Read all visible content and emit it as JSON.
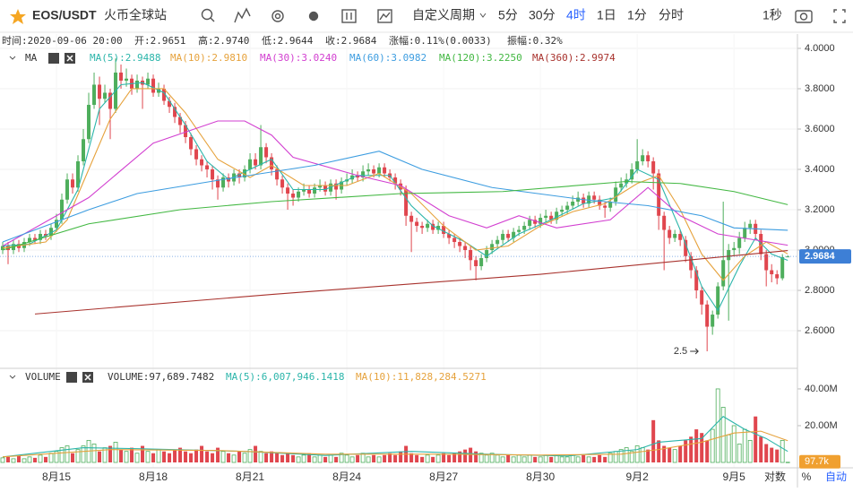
{
  "toolbar": {
    "symbol": "EOS/USDT",
    "exchange": "火币全球站",
    "period_menu": "自定义周期",
    "periods": [
      "5分",
      "30分",
      "4时",
      "1日",
      "1分",
      "分时"
    ],
    "active_period": "4时",
    "speed": "1秒"
  },
  "footer": {
    "log": "对数",
    "percent": "%",
    "auto": "自动"
  },
  "chart_data": {
    "type": "candlestick",
    "info": [
      "时间:2020-09-06 20:00",
      "开:2.9651",
      "高:2.9740",
      "低:2.9644",
      "收:2.9684",
      "涨幅:0.11%(0.0033)",
      "振幅:0.32%"
    ],
    "indicator": "MA",
    "up_color": "#4eae5c",
    "down_color": "#e0464e",
    "xlim": [
      -0.5,
      147.8
    ],
    "xticks": [
      {
        "value": 10,
        "label": "8月15"
      },
      {
        "value": 28,
        "label": "8月18"
      },
      {
        "value": 46,
        "label": "8月21"
      },
      {
        "value": 64,
        "label": "8月24"
      },
      {
        "value": 82,
        "label": "8月27"
      },
      {
        "value": 100,
        "label": "8月30"
      },
      {
        "value": 118,
        "label": "9月2"
      },
      {
        "value": 136,
        "label": "9月5"
      }
    ],
    "ylim": [
      2.418,
      4.071
    ],
    "yticks": [
      {
        "value": 2.6,
        "label": "2.6000"
      },
      {
        "value": 2.8,
        "label": "2.8000"
      },
      {
        "value": 3.0,
        "label": "3.0000"
      },
      {
        "value": 3.2,
        "label": "3.2000"
      },
      {
        "value": 3.4,
        "label": "3.4000"
      },
      {
        "value": 3.6,
        "label": "3.6000"
      },
      {
        "value": 3.8,
        "label": "3.8000"
      },
      {
        "value": 4.0,
        "label": "4.0000"
      }
    ],
    "grid": true,
    "low_label": "2.5",
    "open": [
      3.0,
      3.02,
      3.0,
      3.03,
      3.01,
      3.04,
      3.06,
      3.05,
      3.08,
      3.07,
      3.11,
      3.15,
      3.25,
      3.35,
      3.31,
      3.44,
      3.55,
      3.72,
      3.82,
      3.75,
      3.78,
      3.7,
      3.88,
      3.84,
      3.85,
      3.8,
      3.84,
      3.82,
      3.85,
      3.78,
      3.8,
      3.74,
      3.71,
      3.66,
      3.62,
      3.56,
      3.5,
      3.45,
      3.42,
      3.4,
      3.35,
      3.31,
      3.36,
      3.34,
      3.38,
      3.36,
      3.4,
      3.45,
      3.42,
      3.51,
      3.46,
      3.4,
      3.35,
      3.31,
      3.28,
      3.26,
      3.29,
      3.3,
      3.28,
      3.31,
      3.32,
      3.29,
      3.33,
      3.3,
      3.34,
      3.35,
      3.37,
      3.36,
      3.39,
      3.4,
      3.38,
      3.41,
      3.38,
      3.36,
      3.33,
      3.3,
      3.17,
      3.14,
      3.12,
      3.11,
      3.13,
      3.1,
      3.12,
      3.08,
      3.06,
      3.04,
      3.02,
      3.0,
      2.95,
      2.92,
      2.96,
      3.0,
      3.03,
      3.05,
      3.08,
      3.06,
      3.09,
      3.1,
      3.12,
      3.15,
      3.13,
      3.16,
      3.17,
      3.15,
      3.19,
      3.2,
      3.22,
      3.24,
      3.26,
      3.23,
      3.27,
      3.25,
      3.22,
      3.21,
      3.24,
      3.31,
      3.33,
      3.35,
      3.4,
      3.44,
      3.47,
      3.44,
      3.38,
      3.17,
      3.1,
      3.06,
      3.08,
      3.05,
      2.97,
      2.9,
      2.8,
      2.73,
      2.62,
      2.68,
      2.82,
      2.95,
      3.0,
      3.01,
      3.06,
      3.11,
      3.13,
      3.08,
      2.98,
      2.9,
      2.88,
      2.86,
      2.9651
    ],
    "high": [
      3.04,
      3.04,
      3.05,
      3.05,
      3.06,
      3.08,
      3.08,
      3.1,
      3.1,
      3.13,
      3.18,
      3.28,
      3.38,
      3.38,
      3.47,
      3.6,
      3.78,
      3.88,
      3.86,
      3.82,
      3.8,
      3.95,
      3.92,
      3.9,
      3.87,
      3.87,
      3.86,
      3.88,
      3.87,
      3.83,
      3.82,
      3.76,
      3.73,
      3.68,
      3.64,
      3.58,
      3.52,
      3.47,
      3.44,
      3.42,
      3.37,
      3.38,
      3.38,
      3.4,
      3.4,
      3.42,
      3.48,
      3.48,
      3.62,
      3.53,
      3.48,
      3.42,
      3.37,
      3.33,
      3.3,
      3.31,
      3.33,
      3.32,
      3.33,
      3.35,
      3.34,
      3.35,
      3.35,
      3.36,
      3.38,
      3.4,
      3.39,
      3.42,
      3.43,
      3.42,
      3.43,
      3.43,
      3.4,
      3.38,
      3.35,
      3.32,
      3.19,
      3.16,
      3.14,
      3.15,
      3.15,
      3.14,
      3.14,
      3.1,
      3.08,
      3.06,
      3.04,
      3.02,
      2.97,
      2.98,
      3.02,
      3.05,
      3.07,
      3.1,
      3.1,
      3.11,
      3.12,
      3.14,
      3.17,
      3.17,
      3.18,
      3.2,
      3.19,
      3.21,
      3.22,
      3.24,
      3.27,
      3.29,
      3.28,
      3.29,
      3.29,
      3.27,
      3.24,
      3.26,
      3.34,
      3.36,
      3.38,
      3.43,
      3.55,
      3.5,
      3.49,
      3.46,
      3.4,
      3.19,
      3.12,
      3.1,
      3.1,
      3.07,
      2.99,
      2.92,
      2.82,
      2.75,
      2.7,
      2.84,
      3.24,
      3.03,
      3.04,
      3.09,
      3.14,
      3.15,
      3.15,
      3.1,
      3.0,
      2.93,
      2.9,
      2.98,
      2.974
    ],
    "low": [
      2.98,
      2.93,
      2.98,
      2.99,
      2.99,
      3.02,
      3.03,
      3.03,
      3.05,
      3.05,
      3.09,
      3.13,
      3.23,
      3.28,
      3.29,
      3.42,
      3.53,
      3.7,
      3.62,
      3.73,
      3.55,
      3.68,
      3.8,
      3.81,
      3.77,
      3.78,
      3.7,
      3.8,
      3.76,
      3.76,
      3.72,
      3.68,
      3.63,
      3.58,
      3.53,
      3.47,
      3.42,
      3.39,
      3.36,
      3.3,
      3.25,
      3.29,
      3.31,
      3.32,
      3.33,
      3.34,
      3.38,
      3.4,
      3.4,
      3.43,
      3.37,
      3.32,
      3.28,
      3.2,
      3.22,
      3.24,
      3.27,
      3.26,
      3.26,
      3.29,
      3.27,
      3.27,
      3.25,
      3.28,
      3.32,
      3.33,
      3.34,
      3.34,
      3.37,
      3.36,
      3.36,
      3.36,
      3.34,
      3.3,
      3.27,
      3.12,
      2.99,
      3.09,
      3.08,
      3.09,
      3.08,
      3.08,
      3.06,
      3.03,
      3.01,
      2.99,
      2.96,
      2.9,
      2.85,
      2.9,
      2.94,
      2.98,
      3.01,
      3.03,
      3.04,
      3.04,
      3.07,
      3.08,
      3.1,
      3.11,
      3.11,
      3.14,
      3.13,
      3.13,
      3.17,
      3.18,
      3.2,
      3.22,
      3.21,
      3.21,
      3.23,
      3.2,
      3.16,
      3.19,
      3.22,
      3.29,
      3.31,
      3.33,
      3.38,
      3.42,
      3.41,
      3.3,
      3.1,
      2.9,
      3.03,
      3.04,
      3.02,
      2.94,
      2.86,
      2.76,
      2.68,
      2.498,
      2.58,
      2.66,
      2.8,
      2.65,
      2.97,
      2.98,
      3.04,
      3.08,
      3.05,
      2.95,
      2.82,
      2.84,
      2.83,
      2.85,
      2.9644
    ],
    "close": [
      3.02,
      3.0,
      3.03,
      3.01,
      3.04,
      3.06,
      3.05,
      3.08,
      3.07,
      3.11,
      3.15,
      3.25,
      3.35,
      3.31,
      3.44,
      3.55,
      3.72,
      3.82,
      3.75,
      3.78,
      3.7,
      3.88,
      3.84,
      3.85,
      3.8,
      3.84,
      3.82,
      3.85,
      3.78,
      3.8,
      3.74,
      3.71,
      3.66,
      3.62,
      3.56,
      3.5,
      3.45,
      3.42,
      3.4,
      3.35,
      3.31,
      3.36,
      3.34,
      3.38,
      3.36,
      3.4,
      3.45,
      3.42,
      3.51,
      3.46,
      3.4,
      3.35,
      3.31,
      3.28,
      3.26,
      3.29,
      3.3,
      3.28,
      3.31,
      3.32,
      3.29,
      3.33,
      3.3,
      3.34,
      3.35,
      3.37,
      3.36,
      3.39,
      3.4,
      3.38,
      3.41,
      3.38,
      3.36,
      3.33,
      3.3,
      3.17,
      3.14,
      3.12,
      3.11,
      3.13,
      3.1,
      3.12,
      3.08,
      3.06,
      3.04,
      3.02,
      3.0,
      2.95,
      2.92,
      2.96,
      3.0,
      3.03,
      3.05,
      3.08,
      3.06,
      3.09,
      3.1,
      3.12,
      3.15,
      3.13,
      3.16,
      3.17,
      3.15,
      3.19,
      3.2,
      3.22,
      3.24,
      3.26,
      3.23,
      3.27,
      3.25,
      3.22,
      3.21,
      3.24,
      3.31,
      3.33,
      3.35,
      3.4,
      3.44,
      3.47,
      3.44,
      3.38,
      3.17,
      3.1,
      3.06,
      3.08,
      3.05,
      2.97,
      2.9,
      2.8,
      2.73,
      2.62,
      2.68,
      2.82,
      2.95,
      3.0,
      3.01,
      3.06,
      3.11,
      3.13,
      3.08,
      2.98,
      2.9,
      2.88,
      2.86,
      2.965,
      2.9684
    ],
    "series": [
      {
        "name": "MA(5):2.9488",
        "color": "#2bb5aa",
        "x": [
          0,
          5,
          10,
          14,
          18,
          22,
          26,
          30,
          34,
          38,
          42,
          46,
          50,
          54,
          60,
          66,
          72,
          76,
          80,
          86,
          90,
          96,
          102,
          108,
          114,
          118,
          122,
          126,
          130,
          133,
          137,
          140,
          143,
          146
        ],
        "values": [
          3.02,
          3.03,
          3.1,
          3.3,
          3.7,
          3.82,
          3.83,
          3.78,
          3.62,
          3.44,
          3.35,
          3.4,
          3.45,
          3.3,
          3.3,
          3.37,
          3.37,
          3.22,
          3.12,
          3.04,
          2.97,
          3.08,
          3.15,
          3.23,
          3.26,
          3.4,
          3.35,
          3.1,
          2.82,
          2.7,
          2.92,
          3.06,
          2.98,
          2.9488
        ]
      },
      {
        "name": "MA(10):2.9810",
        "color": "#e6a23c",
        "x": [
          0,
          8,
          12,
          16,
          20,
          24,
          30,
          34,
          40,
          46,
          50,
          56,
          64,
          70,
          76,
          82,
          88,
          94,
          100,
          106,
          112,
          118,
          122,
          126,
          130,
          134,
          138,
          142,
          146
        ],
        "values": [
          3.01,
          3.04,
          3.15,
          3.4,
          3.65,
          3.8,
          3.8,
          3.68,
          3.45,
          3.36,
          3.42,
          3.32,
          3.32,
          3.38,
          3.28,
          3.12,
          3.0,
          3.02,
          3.12,
          3.19,
          3.23,
          3.33,
          3.37,
          3.2,
          2.98,
          2.85,
          2.97,
          3.04,
          2.981
        ]
      },
      {
        "name": "MA(30):3.0240",
        "color": "#d23fd0",
        "x": [
          0,
          16,
          28,
          40,
          45,
          50,
          54,
          66,
          74,
          83,
          90,
          96,
          103,
          113,
          120,
          126,
          133,
          146
        ],
        "values": [
          3.02,
          3.26,
          3.53,
          3.64,
          3.64,
          3.57,
          3.46,
          3.37,
          3.32,
          3.17,
          3.11,
          3.17,
          3.11,
          3.15,
          3.31,
          3.17,
          3.08,
          3.024
        ]
      },
      {
        "name": "MA(60):3.0982",
        "color": "#3d9de0",
        "x": [
          0,
          16,
          25,
          41,
          58,
          70,
          78,
          91,
          108,
          120,
          130,
          136,
          146
        ],
        "values": [
          3.04,
          3.2,
          3.28,
          3.35,
          3.42,
          3.49,
          3.4,
          3.31,
          3.25,
          3.22,
          3.17,
          3.11,
          3.0982
        ]
      },
      {
        "name": "MA(120):3.2250",
        "color": "#43b843",
        "x": [
          0,
          16,
          33,
          50,
          74,
          93,
          116,
          126,
          136,
          146
        ],
        "values": [
          3.0,
          3.13,
          3.2,
          3.24,
          3.28,
          3.29,
          3.34,
          3.33,
          3.29,
          3.225
        ]
      },
      {
        "name": "MA(360):2.9974",
        "color": "#a8322d",
        "x": [
          6,
          50,
          100,
          146
        ],
        "values": [
          2.683,
          2.78,
          2.88,
          2.9974
        ]
      }
    ],
    "volume": {
      "title": "VOLUME",
      "label": "VOLUME:97,689.7482",
      "last_label": "97.7k",
      "ylim": [
        0,
        50700000
      ],
      "yticks": [
        {
          "value": 20000000,
          "label": "20.00M"
        },
        {
          "value": 40000000,
          "label": "40.00M"
        }
      ],
      "values": [
        2500000,
        3000000,
        2000000,
        3500000,
        2000000,
        3000000,
        2500000,
        4000000,
        3000000,
        5000000,
        6000000,
        8000000,
        9000000,
        5000000,
        7000000,
        9000000,
        12000000,
        10000000,
        6000000,
        8000000,
        9000000,
        11000000,
        7000000,
        6000000,
        8000000,
        5000000,
        9000000,
        6000000,
        5000000,
        7000000,
        6000000,
        5000000,
        7000000,
        8000000,
        6000000,
        5000000,
        7000000,
        9000000,
        6000000,
        5000000,
        8000000,
        6000000,
        5000000,
        4000000,
        6000000,
        5000000,
        7000000,
        9000000,
        6000000,
        5000000,
        6000000,
        5000000,
        4000000,
        5000000,
        4000000,
        3000000,
        4000000,
        5000000,
        3000000,
        4000000,
        3000000,
        4000000,
        3000000,
        5000000,
        4000000,
        3000000,
        4000000,
        5000000,
        3000000,
        4000000,
        3000000,
        4000000,
        5000000,
        4000000,
        6000000,
        9000000,
        5000000,
        4000000,
        3000000,
        4000000,
        3000000,
        4000000,
        5000000,
        4000000,
        5000000,
        6000000,
        7000000,
        8000000,
        6000000,
        5000000,
        4000000,
        5000000,
        4000000,
        3000000,
        4000000,
        3000000,
        4000000,
        3000000,
        4000000,
        3000000,
        3000000,
        4000000,
        3000000,
        4000000,
        3000000,
        3000000,
        4000000,
        3000000,
        4000000,
        3000000,
        3000000,
        4000000,
        3000000,
        5000000,
        6000000,
        7000000,
        8000000,
        6000000,
        9000000,
        8000000,
        7000000,
        23000000,
        12000000,
        9000000,
        8000000,
        7000000,
        9000000,
        12000000,
        14000000,
        18000000,
        16000000,
        12000000,
        18000000,
        40000000,
        30000000,
        15000000,
        20000000,
        10000000,
        18000000,
        12000000,
        25000000,
        14000000,
        10000000,
        8000000,
        7000000,
        12000000,
        97689.7482
      ],
      "series": [
        {
          "name": "MA(5):6,007,946.1418",
          "color": "#2bb5aa",
          "x": [
            0,
            15,
            25,
            45,
            60,
            76,
            90,
            105,
            118,
            122,
            130,
            134,
            138,
            142,
            146
          ],
          "values": [
            3000000,
            8000000,
            7500000,
            6000000,
            3800000,
            6000000,
            4500000,
            3500000,
            7000000,
            11000000,
            13000000,
            25000000,
            18000000,
            13000000,
            6007946.1418
          ]
        },
        {
          "name": "MA(10):11,828,284.5271",
          "color": "#e6a23c",
          "x": [
            0,
            20,
            40,
            60,
            80,
            100,
            115,
            122,
            130,
            136,
            141,
            146
          ],
          "values": [
            3000000,
            7000000,
            6500000,
            4500000,
            4500000,
            4000000,
            4500000,
            7000000,
            11000000,
            16000000,
            17000000,
            11828284.5271
          ]
        }
      ]
    }
  }
}
